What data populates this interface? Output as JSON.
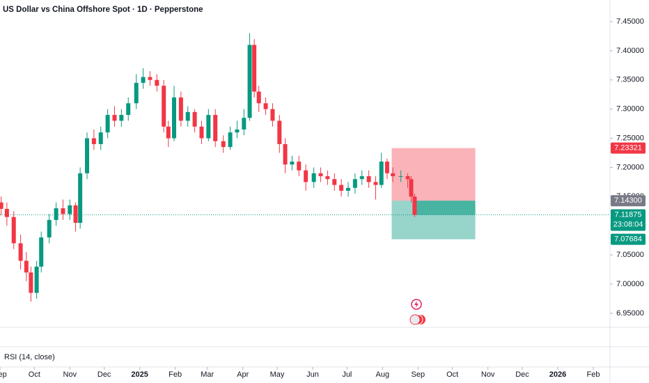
{
  "chart_data": {
    "type": "candlestick",
    "title": "US Dollar vs China Offshore Spot · 1D · Pepperstone",
    "indicator": "RSI (14, close)",
    "up_color": "#089981",
    "down_color": "#f23645",
    "x": [
      1,
      6,
      12,
      18,
      23,
      27,
      32,
      36,
      43,
      49,
      55,
      61,
      66,
      70,
      76,
      82,
      88,
      94,
      100,
      106,
      112,
      119,
      125,
      131,
      137,
      143,
      147,
      152,
      158,
      164,
      170,
      176,
      182,
      188,
      195,
      201,
      207,
      213,
      218,
      222,
      226,
      232,
      238,
      244,
      249,
      255,
      261,
      267,
      274,
      280,
      286,
      292,
      298,
      304,
      310,
      316,
      322,
      328,
      333,
      338,
      343,
      350,
      356,
      359,
      362
    ],
    "open": [
      7.14,
      7.129,
      7.115,
      7.07,
      7.04,
      7.02,
      6.985,
      7.03,
      7.08,
      7.11,
      7.13,
      7.12,
      7.135,
      7.105,
      7.19,
      7.25,
      7.24,
      7.26,
      7.29,
      7.28,
      7.29,
      7.31,
      7.345,
      7.355,
      7.35,
      7.34,
      7.27,
      7.25,
      7.32,
      7.28,
      7.295,
      7.27,
      7.25,
      7.29,
      7.245,
      7.235,
      7.26,
      7.265,
      7.285,
      7.41,
      7.33,
      7.31,
      7.3,
      7.28,
      7.24,
      7.205,
      7.21,
      7.195,
      7.175,
      7.19,
      7.185,
      7.18,
      7.17,
      7.16,
      7.165,
      7.18,
      7.185,
      7.175,
      7.17,
      7.21,
      7.19,
      7.185,
      7.185,
      7.18,
      7.15
    ],
    "high": [
      7.15,
      7.14,
      7.125,
      7.085,
      7.055,
      7.03,
      7.04,
      7.09,
      7.12,
      7.14,
      7.145,
      7.145,
      7.14,
      7.2,
      7.26,
      7.265,
      7.27,
      7.3,
      7.305,
      7.3,
      7.32,
      7.36,
      7.37,
      7.365,
      7.36,
      7.35,
      7.28,
      7.34,
      7.33,
      7.305,
      7.3,
      7.28,
      7.3,
      7.3,
      7.255,
      7.27,
      7.28,
      7.3,
      7.43,
      7.42,
      7.34,
      7.32,
      7.31,
      7.29,
      7.25,
      7.22,
      7.22,
      7.205,
      7.2,
      7.2,
      7.195,
      7.19,
      7.18,
      7.175,
      7.19,
      7.195,
      7.195,
      7.185,
      7.225,
      7.215,
      7.2,
      7.195,
      7.19,
      7.185,
      7.155
    ],
    "low": [
      7.118,
      7.1,
      7.06,
      7.025,
      7.005,
      6.97,
      6.975,
      7.02,
      7.07,
      7.1,
      7.11,
      7.11,
      7.09,
      7.095,
      7.18,
      7.23,
      7.23,
      7.25,
      7.27,
      7.27,
      7.28,
      7.3,
      7.335,
      7.34,
      7.33,
      7.26,
      7.235,
      7.245,
      7.27,
      7.27,
      7.26,
      7.24,
      7.245,
      7.235,
      7.225,
      7.23,
      7.25,
      7.255,
      7.28,
      7.32,
      7.295,
      7.29,
      7.27,
      7.225,
      7.19,
      7.195,
      7.185,
      7.16,
      7.165,
      7.175,
      7.17,
      7.16,
      7.15,
      7.15,
      7.155,
      7.17,
      7.165,
      7.145,
      7.165,
      7.18,
      7.175,
      7.175,
      7.165,
      7.14,
      7.115
    ],
    "close": [
      7.129,
      7.115,
      7.07,
      7.04,
      7.02,
      6.985,
      7.03,
      7.08,
      7.11,
      7.13,
      7.12,
      7.135,
      7.105,
      7.19,
      7.25,
      7.24,
      7.26,
      7.29,
      7.28,
      7.29,
      7.31,
      7.345,
      7.355,
      7.35,
      7.34,
      7.27,
      7.25,
      7.32,
      7.28,
      7.295,
      7.27,
      7.25,
      7.29,
      7.245,
      7.235,
      7.26,
      7.265,
      7.285,
      7.41,
      7.33,
      7.31,
      7.3,
      7.28,
      7.24,
      7.205,
      7.21,
      7.195,
      7.175,
      7.19,
      7.185,
      7.18,
      7.17,
      7.16,
      7.165,
      7.18,
      7.185,
      7.175,
      7.17,
      7.21,
      7.19,
      7.185,
      7.185,
      7.18,
      7.15,
      7.11875
    ],
    "countdown": "23:08:04",
    "position": {
      "x": [
        342,
        415
      ],
      "stop": 7.23321,
      "entry": {
        "value": 7.143,
        "label": "7.14300"
      },
      "target": 7.07684
    },
    "xlim": [
      0,
      532
    ],
    "ylim": [
      6.926,
      7.487
    ],
    "xticks": [
      {
        "value": 0,
        "label": "Sep"
      },
      {
        "value": 30,
        "label": "Oct"
      },
      {
        "value": 61,
        "label": "Nov"
      },
      {
        "value": 91,
        "label": "Dec"
      },
      {
        "value": 122,
        "label": "2025"
      },
      {
        "value": 153,
        "label": "Feb"
      },
      {
        "value": 181,
        "label": "Mar"
      },
      {
        "value": 212,
        "label": "Apr"
      },
      {
        "value": 242,
        "label": "May"
      },
      {
        "value": 273,
        "label": "Jun"
      },
      {
        "value": 303,
        "label": "Jul"
      },
      {
        "value": 334,
        "label": "Aug"
      },
      {
        "value": 365,
        "label": "Sep"
      },
      {
        "value": 395,
        "label": "Oct"
      },
      {
        "value": 426,
        "label": "Nov"
      },
      {
        "value": 456,
        "label": "Dec"
      },
      {
        "value": 487,
        "label": "2026"
      },
      {
        "value": 518,
        "label": "Feb"
      }
    ],
    "yticks": [
      {
        "value": 6.95,
        "label": "6.95000"
      },
      {
        "value": 7.0,
        "label": "7.00000"
      },
      {
        "value": 7.05,
        "label": "7.05000"
      },
      {
        "value": 7.1,
        "label": "7.10000"
      },
      {
        "value": 7.15,
        "label": "7.15000"
      },
      {
        "value": 7.2,
        "label": "7.20000"
      },
      {
        "value": 7.25,
        "label": "7.25000"
      },
      {
        "value": 7.3,
        "label": "7.30000"
      },
      {
        "value": 7.35,
        "label": "7.35000"
      },
      {
        "value": 7.4,
        "label": "7.40000"
      },
      {
        "value": 7.45,
        "label": "7.45000"
      }
    ]
  }
}
